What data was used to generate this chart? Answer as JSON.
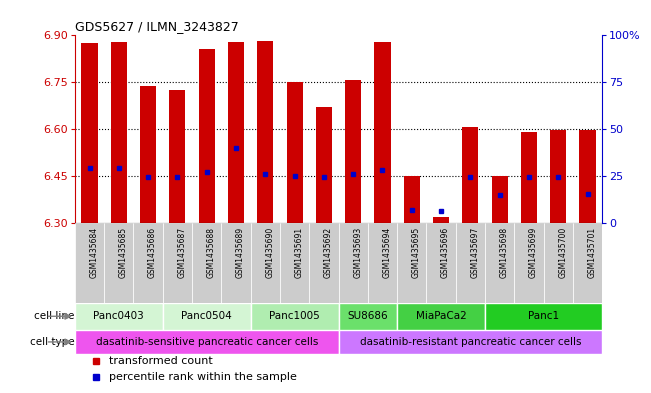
{
  "title": "GDS5627 / ILMN_3243827",
  "samples": [
    "GSM1435684",
    "GSM1435685",
    "GSM1435686",
    "GSM1435687",
    "GSM1435688",
    "GSM1435689",
    "GSM1435690",
    "GSM1435691",
    "GSM1435692",
    "GSM1435693",
    "GSM1435694",
    "GSM1435695",
    "GSM1435696",
    "GSM1435697",
    "GSM1435698",
    "GSM1435699",
    "GSM1435700",
    "GSM1435701"
  ],
  "bar_heights": [
    6.875,
    6.878,
    6.737,
    6.726,
    6.856,
    6.878,
    6.881,
    6.751,
    6.67,
    6.756,
    6.878,
    6.448,
    6.318,
    6.607,
    6.45,
    6.589,
    6.596,
    6.596
  ],
  "percentile_values": [
    6.474,
    6.474,
    6.447,
    6.447,
    6.463,
    6.54,
    6.455,
    6.45,
    6.447,
    6.455,
    6.47,
    6.34,
    6.338,
    6.447,
    6.388,
    6.447,
    6.447,
    6.392
  ],
  "ylim_left": [
    6.3,
    6.9
  ],
  "ylim_right": [
    0,
    100
  ],
  "yticks_left": [
    6.3,
    6.45,
    6.6,
    6.75,
    6.9
  ],
  "yticks_right": [
    0,
    25,
    50,
    75,
    100
  ],
  "bar_color": "#cc0000",
  "dot_color": "#0000cc",
  "cell_lines": [
    {
      "label": "Panc0403",
      "start": 0,
      "end": 3
    },
    {
      "label": "Panc0504",
      "start": 3,
      "end": 6
    },
    {
      "label": "Panc1005",
      "start": 6,
      "end": 9
    },
    {
      "label": "SU8686",
      "start": 9,
      "end": 11
    },
    {
      "label": "MiaPaCa2",
      "start": 11,
      "end": 14
    },
    {
      "label": "Panc1",
      "start": 14,
      "end": 18
    }
  ],
  "cell_line_colors": [
    "#d4f5d4",
    "#d4f5d4",
    "#b0edb0",
    "#6be06b",
    "#44d044",
    "#22cc22"
  ],
  "cell_types": [
    {
      "label": "dasatinib-sensitive pancreatic cancer cells",
      "start": 0,
      "end": 9
    },
    {
      "label": "dasatinib-resistant pancreatic cancer cells",
      "start": 9,
      "end": 18
    }
  ],
  "cell_type_colors": [
    "#ee55ee",
    "#cc77ff"
  ],
  "legend_items": [
    {
      "label": "transformed count",
      "color": "#cc0000"
    },
    {
      "label": "percentile rank within the sample",
      "color": "#0000cc"
    }
  ],
  "axis_color_left": "#cc0000",
  "axis_color_right": "#0000cc",
  "base_value": 6.3,
  "gsm_box_color": "#cccccc",
  "gsm_font_size": 5.5,
  "bar_width": 0.55
}
